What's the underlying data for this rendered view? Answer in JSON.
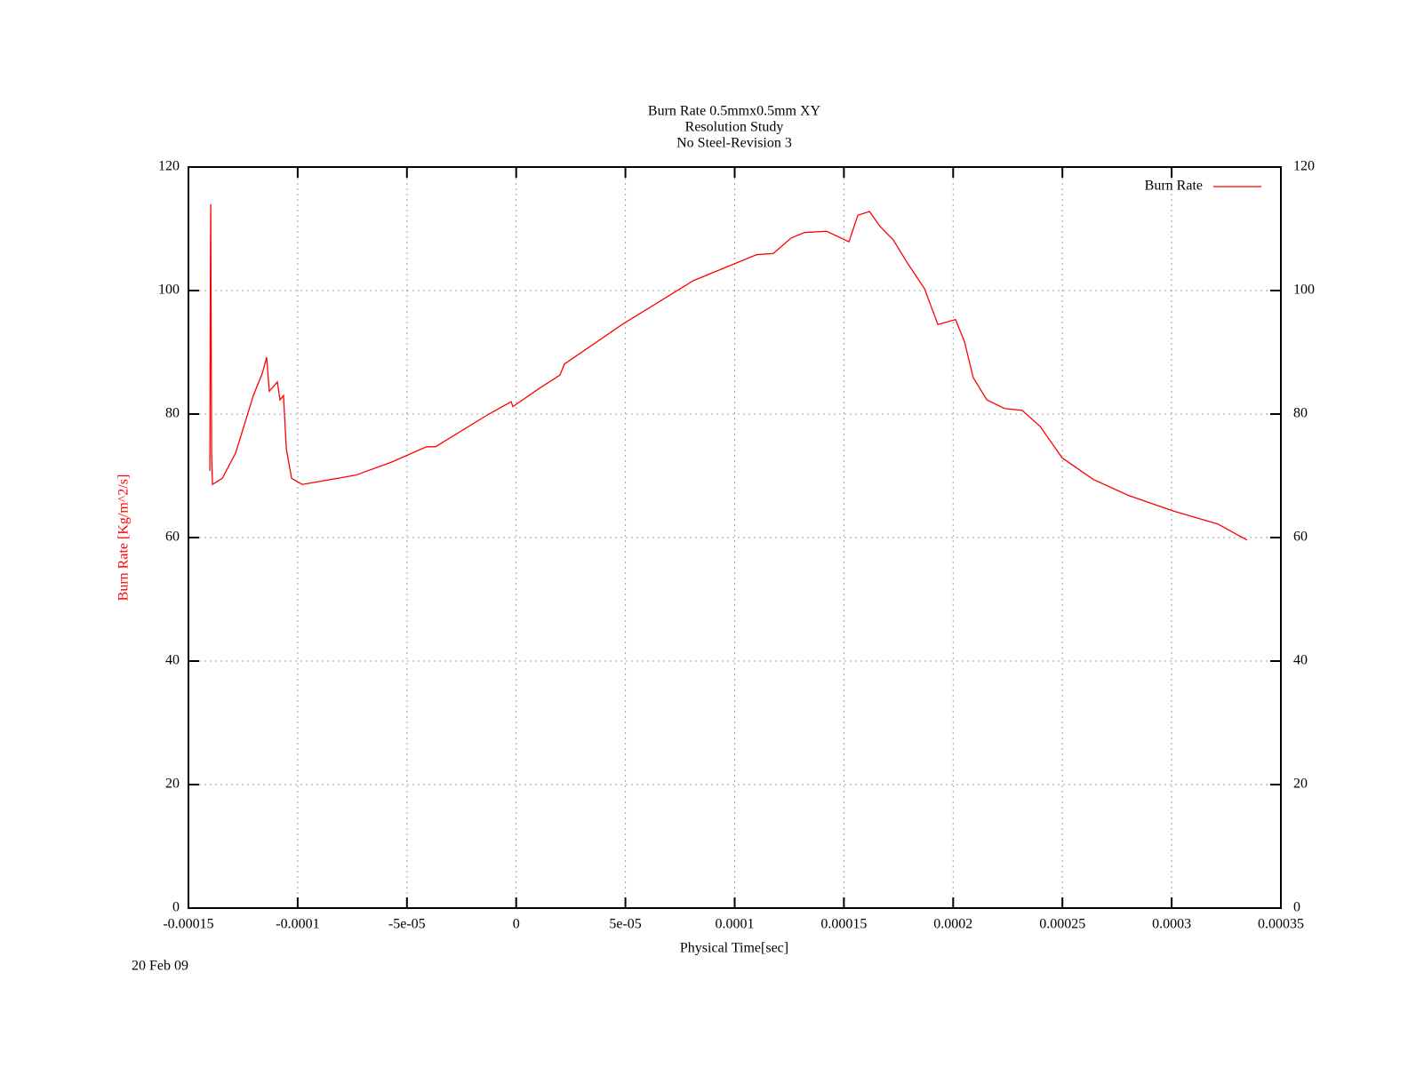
{
  "chart_data": {
    "type": "line",
    "title": [
      "Burn Rate 0.5mmx0.5mm XY",
      "Resolution Study",
      "No Steel-Revision 3"
    ],
    "xlabel": "Physical Time[sec]",
    "ylabel": "Burn Rate  [Kg/m^2/s]",
    "annotation": "20 Feb 09",
    "legend": "top-right",
    "grid": true,
    "xlim": [
      -0.00015,
      0.00035
    ],
    "xticks": [
      -0.00015,
      -0.0001,
      {
        "value": -5e-05,
        "label": "-5e-05"
      },
      0,
      {
        "value": 5e-05,
        "label": "5e-05"
      },
      0.0001,
      0.00015,
      0.0002,
      0.00025,
      0.0003,
      0.00035
    ],
    "ylim": [
      0,
      120
    ],
    "yticks": [
      0,
      20,
      40,
      60,
      80,
      100,
      120
    ],
    "x": [
      -0.0001402,
      -0.0001401,
      -0.00013995,
      -0.0001398,
      -0.0001394,
      -0.000139,
      -0.0001345,
      -0.0001284,
      -0.0001203,
      -0.0001162,
      -0.0001142,
      -0.000113,
      -0.0001093,
      -0.0001081,
      -0.0001065,
      -0.0001052,
      -0.0001028,
      -9.79e-05,
      -7.35e-05,
      -5.72e-05,
      -4.1e-05,
      -3.69e-05,
      -1.25e-05,
      -2.3e-06,
      -1.5e-06,
      9.9e-06,
      2e-05,
      2.21e-05,
      4.85e-05,
      8.11e-05,
      0.00011,
      0.0001177,
      0.0001258,
      0.000132,
      0.0001421,
      0.0001523,
      0.0001564,
      0.0001617,
      0.0001665,
      0.0001726,
      0.0001788,
      0.0001869,
      0.000193,
      0.0002011,
      0.0002052,
      0.0002092,
      0.0002154,
      0.0002235,
      0.0002316,
      0.0002398,
      0.0002499,
      0.0002642,
      0.0002804,
      0.0003008,
      0.0003211,
      0.0003345
    ],
    "series": [
      {
        "name": "Burn Rate",
        "color": "#ff0000",
        "values": [
          70.8,
          85.2,
          104,
          114,
          73.7,
          68.6,
          69.6,
          73.7,
          83,
          86.6,
          89.2,
          83.7,
          85.2,
          82.3,
          83,
          74.4,
          69.6,
          68.6,
          70.1,
          72.2,
          74.7,
          74.7,
          80,
          82,
          81.2,
          84,
          86.3,
          88.1,
          94.5,
          101.6,
          105.8,
          106,
          108.5,
          109.4,
          109.6,
          107.9,
          112.2,
          112.8,
          110.4,
          108.2,
          104.6,
          100.3,
          94.5,
          95.3,
          91.7,
          85.9,
          82.3,
          80.9,
          80.6,
          78,
          72.9,
          69.4,
          66.8,
          64.3,
          62.2,
          59.6
        ]
      }
    ]
  }
}
